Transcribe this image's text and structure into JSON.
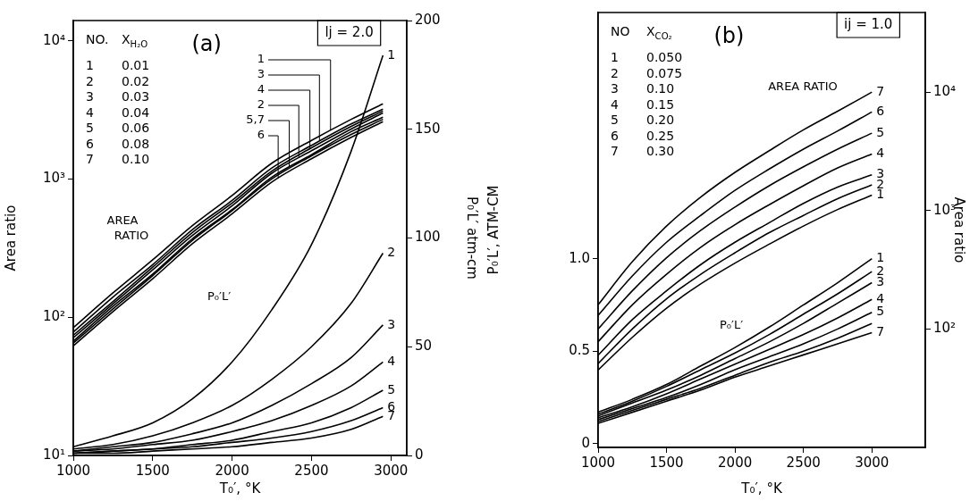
{
  "chart_data": [
    {
      "type": "line",
      "title": "(a)",
      "subtitle": "lj = 2.0",
      "xlabel": "T₀′, °K",
      "ylabel": "Area ratio",
      "y2label": "P₀′L′ atm-cm",
      "log": "y",
      "x": [
        1000,
        1250,
        1500,
        1750,
        2000,
        2250,
        2500,
        2750,
        2950
      ],
      "xlim": [
        1000,
        3100
      ],
      "xticks": [
        1000,
        1500,
        2000,
        2500,
        3000
      ],
      "ylim": [
        10,
        14000
      ],
      "yticks": [
        {
          "value": 10,
          "label": "10¹"
        },
        {
          "value": 100,
          "label": "10²"
        },
        {
          "value": 1000,
          "label": "10³"
        },
        {
          "value": 10000,
          "label": "10⁴"
        }
      ],
      "y2lim": [
        0,
        200
      ],
      "y2ticks": [
        0,
        50,
        100,
        150,
        200
      ],
      "series": [
        {
          "color": "#000000",
          "values": [
            84,
            150,
            260,
            460,
            760,
            1300,
            1900,
            2700,
            3500
          ]
        },
        {
          "color": "#000000",
          "values": [
            71,
            125,
            220,
            390,
            640,
            1100,
            1600,
            2300,
            3000
          ]
        },
        {
          "color": "#000000",
          "values": [
            78,
            140,
            240,
            430,
            700,
            1200,
            1750,
            2500,
            3200
          ]
        },
        {
          "color": "#000000",
          "values": [
            74,
            130,
            230,
            410,
            670,
            1140,
            1680,
            2400,
            3100
          ]
        },
        {
          "color": "#000000",
          "values": [
            67,
            120,
            205,
            370,
            600,
            1030,
            1500,
            2200,
            2800
          ]
        },
        {
          "color": "#000000",
          "values": [
            62,
            110,
            190,
            340,
            560,
            950,
            1400,
            2000,
            2600
          ]
        },
        {
          "color": "#000000",
          "values": [
            65,
            115,
            200,
            360,
            590,
            1000,
            1470,
            2100,
            2700
          ]
        },
        {
          "name": "1",
          "color": "#000000",
          "axis": "y2",
          "values": [
            4,
            9,
            15,
            26,
            43,
            67,
            97,
            140,
            184
          ]
        },
        {
          "name": "2",
          "color": "#000000",
          "axis": "y2",
          "values": [
            3,
            5,
            9,
            15,
            23,
            35,
            50,
            70,
            93
          ]
        },
        {
          "name": "3",
          "color": "#000000",
          "axis": "y2",
          "values": [
            2,
            4,
            6,
            10,
            15,
            23,
            33,
            45,
            60
          ]
        },
        {
          "name": "4",
          "color": "#000000",
          "axis": "y2",
          "values": [
            2,
            3,
            5,
            7,
            11,
            16,
            23,
            32,
            43
          ]
        },
        {
          "name": "5",
          "color": "#000000",
          "axis": "y2",
          "values": [
            1,
            2,
            3,
            5,
            7,
            11,
            15,
            22,
            30
          ]
        },
        {
          "name": "6",
          "color": "#000000",
          "axis": "y2",
          "values": [
            1,
            2,
            3,
            4,
            6,
            8,
            11,
            16,
            22
          ]
        },
        {
          "name": "7",
          "color": "#000000",
          "axis": "y2",
          "values": [
            1,
            1,
            2,
            3,
            4,
            6,
            8,
            12,
            18
          ]
        }
      ],
      "annotations": [
        "NO.",
        "X$_{H₂O}$",
        "1",
        "0.01",
        "2",
        "0.02",
        "3",
        "0.03",
        "4",
        "0.04",
        "5",
        "0.06",
        "6",
        "0.08",
        "7",
        "0.10",
        {
          "text": "1",
          "x": 2620,
          "y": 2250
        },
        {
          "text": "3",
          "x": 2550,
          "y": 1900
        },
        {
          "text": "4",
          "x": 2490,
          "y": 1670
        },
        {
          "text": "2",
          "x": 2420,
          "y": 1440
        },
        {
          "text": "5,7",
          "x": 2360,
          "y": 1220
        },
        {
          "text": "6",
          "x": 2290,
          "y": 1010
        },
        "AREA RATIO",
        "P₀′L′"
      ]
    },
    {
      "type": "line",
      "title": "(b)",
      "subtitle": "ij = 1.0",
      "xlabel": "T₀′, °K",
      "ylabel": "P₀′L′, ATM-CM",
      "y2label": "Area ratio",
      "log": "y2",
      "x": [
        1000,
        1250,
        1500,
        1750,
        2000,
        2250,
        2500,
        2750,
        3000
      ],
      "xlim": [
        1000,
        3390
      ],
      "xticks": [
        1000,
        1500,
        2000,
        2500,
        3000
      ],
      "ylim": [
        -0.02,
        2.33
      ],
      "yticks": [
        0,
        0.5,
        {
          "value": 1,
          "label": "1.0"
        }
      ],
      "y2lim": [
        10,
        47000
      ],
      "y2ticks": [
        {
          "value": 100,
          "label": "10²"
        },
        {
          "value": 1000,
          "label": "10³"
        },
        {
          "value": 10000,
          "label": "10⁴"
        }
      ],
      "series": [
        {
          "name": "1",
          "color": "#000000",
          "axis": "y2",
          "values": [
            45,
            85,
            150,
            240,
            360,
            520,
            740,
            1020,
            1350
          ]
        },
        {
          "name": "2",
          "color": "#000000",
          "axis": "y2",
          "values": [
            51,
            100,
            180,
            290,
            440,
            650,
            910,
            1260,
            1650
          ]
        },
        {
          "name": "3",
          "color": "#000000",
          "axis": "y2",
          "values": [
            60,
            120,
            210,
            350,
            540,
            790,
            1150,
            1580,
            2000
          ]
        },
        {
          "name": "4",
          "color": "#000000",
          "axis": "y2",
          "values": [
            78,
            160,
            290,
            490,
            760,
            1120,
            1620,
            2290,
            3000
          ]
        },
        {
          "name": "5",
          "color": "#000000",
          "axis": "y2",
          "values": [
            100,
            210,
            400,
            680,
            1070,
            1620,
            2340,
            3300,
            4500
          ]
        },
        {
          "name": "6",
          "color": "#000000",
          "axis": "y2",
          "values": [
            130,
            280,
            540,
            910,
            1480,
            2240,
            3300,
            4700,
            6800
          ]
        },
        {
          "name": "7",
          "color": "#000000",
          "axis": "y2",
          "values": [
            160,
            370,
            740,
            1300,
            2100,
            3200,
            4800,
            6900,
            10000
          ]
        },
        {
          "name": "1",
          "color": "#000000",
          "values": [
            0.17,
            0.24,
            0.32,
            0.42,
            0.52,
            0.63,
            0.75,
            0.87,
            1.0
          ]
        },
        {
          "name": "2",
          "color": "#000000",
          "values": [
            0.16,
            0.23,
            0.31,
            0.4,
            0.49,
            0.59,
            0.7,
            0.81,
            0.93
          ]
        },
        {
          "name": "3",
          "color": "#000000",
          "values": [
            0.15,
            0.22,
            0.29,
            0.37,
            0.46,
            0.55,
            0.65,
            0.76,
            0.87
          ]
        },
        {
          "name": "4",
          "color": "#000000",
          "values": [
            0.14,
            0.2,
            0.27,
            0.35,
            0.43,
            0.51,
            0.59,
            0.68,
            0.78
          ]
        },
        {
          "name": "5",
          "color": "#000000",
          "values": [
            0.13,
            0.19,
            0.25,
            0.32,
            0.4,
            0.47,
            0.54,
            0.62,
            0.71
          ]
        },
        {
          "color": "#000000",
          "values": [
            0.12,
            0.18,
            0.24,
            0.3,
            0.37,
            0.44,
            0.5,
            0.57,
            0.65
          ]
        },
        {
          "name": "7",
          "color": "#000000",
          "values": [
            0.11,
            0.17,
            0.23,
            0.29,
            0.36,
            0.42,
            0.48,
            0.54,
            0.6
          ]
        }
      ],
      "annotations": [
        "NO",
        "X$_{CO₂}$",
        "1",
        "0.050",
        "2",
        "0.075",
        "3",
        "0.10",
        "4",
        "0.15",
        "5",
        "0.20",
        "6",
        "0.25",
        "7",
        "0.30",
        "AREA RATIO",
        "P₀′L′"
      ]
    }
  ]
}
